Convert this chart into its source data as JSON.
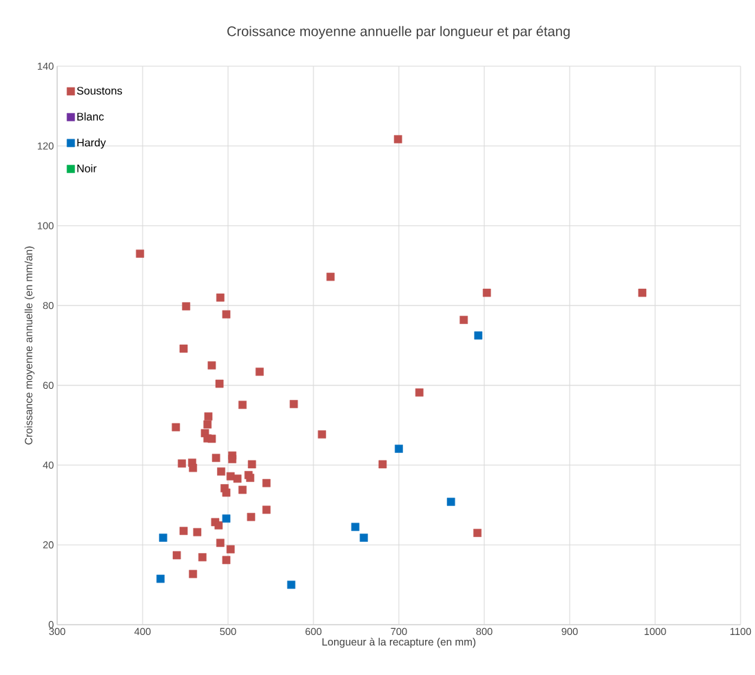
{
  "chart_data": {
    "type": "scatter",
    "title": "Croissance moyenne annuelle par longueur et par étang",
    "xlabel": "Longueur à la recapture (en mm)",
    "ylabel": "Croissance moyenne annuelle (en mm/an)",
    "xlim": [
      300,
      1100
    ],
    "xticks": [
      300,
      400,
      500,
      600,
      700,
      800,
      900,
      1000,
      1100
    ],
    "ylim": [
      0,
      140
    ],
    "yticks": [
      0,
      20,
      40,
      60,
      80,
      100,
      120,
      140
    ],
    "grid": true,
    "legend": "top left",
    "marker": "square",
    "series": [
      {
        "name": "Soustons",
        "color": "#c0504d",
        "x": [
          397,
          699,
          620,
          803,
          985,
          776,
          451,
          491,
          498,
          448,
          481,
          490,
          537,
          517,
          577,
          724,
          610,
          439,
          477,
          476,
          473,
          476,
          481,
          486,
          458,
          446,
          459,
          505,
          505,
          528,
          492,
          503,
          511,
          524,
          526,
          545,
          681,
          496,
          498,
          517,
          545,
          527,
          485,
          489,
          448,
          464,
          792,
          491,
          440,
          470,
          503,
          498,
          459
        ],
        "values": [
          93,
          121.7,
          87.2,
          83.2,
          83.2,
          76.4,
          79.8,
          82,
          77.8,
          69.2,
          65,
          60.4,
          63.4,
          55.1,
          55.3,
          58.2,
          47.7,
          49.5,
          52.2,
          50.2,
          48,
          46.7,
          46.6,
          41.8,
          40.6,
          40.4,
          39.3,
          42.4,
          41.5,
          40.2,
          38.4,
          37.2,
          36.6,
          37.5,
          36.8,
          35.5,
          40.2,
          34.2,
          33.1,
          33.8,
          28.8,
          27,
          25.7,
          24.9,
          23.5,
          23.2,
          23,
          20.5,
          17.4,
          16.9,
          18.9,
          16.2,
          12.7
        ]
      },
      {
        "name": "Blanc",
        "color": "#7030a0"
      },
      {
        "name": "Hardy",
        "color": "#0070c0",
        "x": [
          793,
          700,
          761,
          498,
          649,
          659,
          424,
          421,
          574
        ],
        "values": [
          72.5,
          44.1,
          30.8,
          26.6,
          24.5,
          21.8,
          21.8,
          11.5,
          10
        ]
      },
      {
        "name": "Noir",
        "color": "#00b050"
      }
    ]
  }
}
